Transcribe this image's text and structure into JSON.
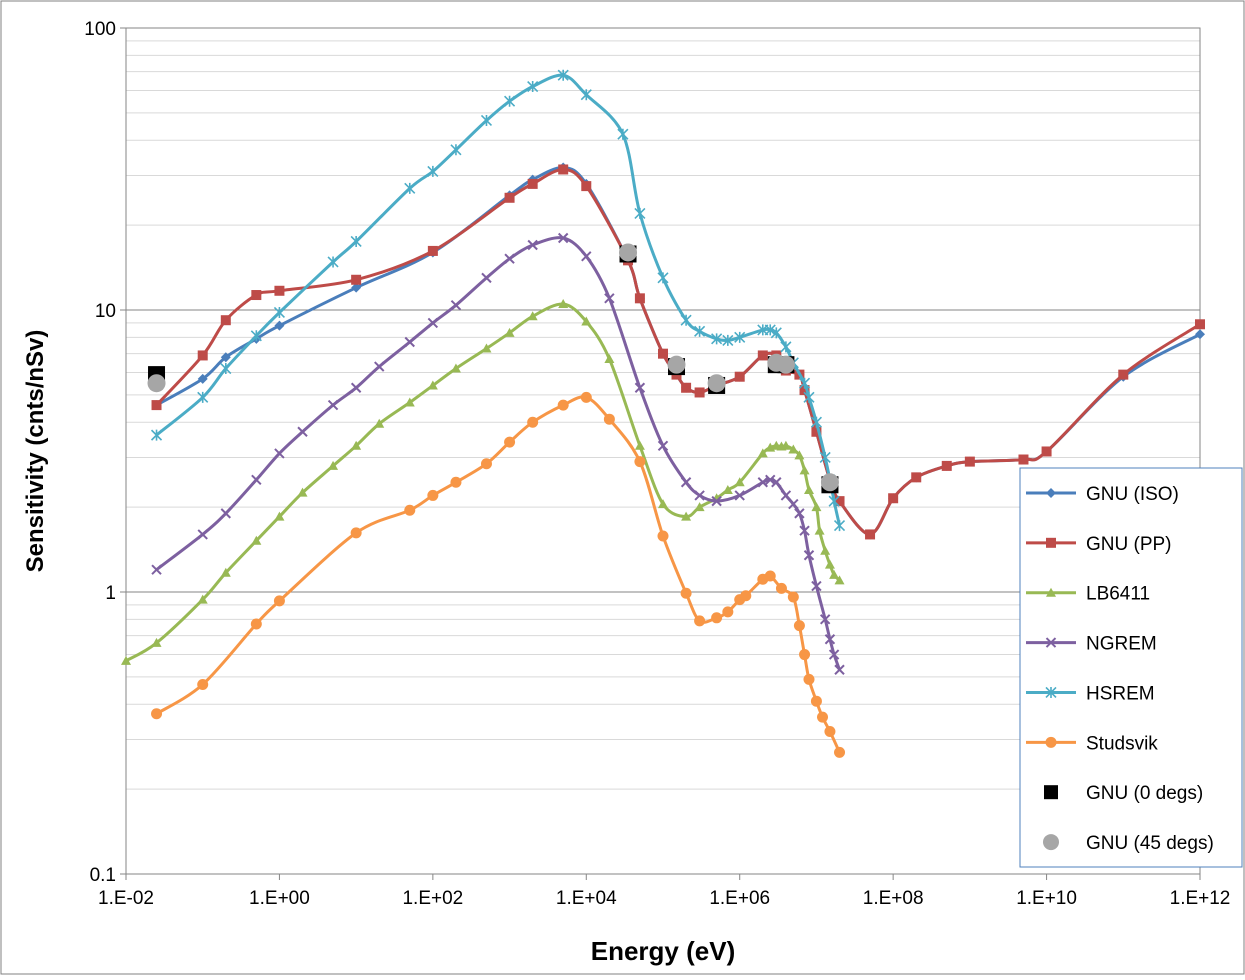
{
  "chart_data": {
    "type": "scatter",
    "xlabel": "Energy (eV)",
    "ylabel": "Sensitivity (cnts/nSv)",
    "x_scale": "log",
    "y_scale": "log",
    "xlim": [
      0.01,
      1000000000000
    ],
    "ylim": [
      0.1,
      100
    ],
    "x_tick_values": [
      0.01,
      1,
      100,
      10000,
      1000000,
      100000000,
      10000000000,
      1000000000000
    ],
    "x_tick_labels": [
      "1.E-02",
      "1.E+00",
      "1.E+02",
      "1.E+04",
      "1.E+06",
      "1.E+08",
      "1.E+10",
      "1.E+12"
    ],
    "y_tick_values": [
      0.1,
      1,
      10,
      100
    ],
    "y_tick_labels": [
      "0.1",
      "1",
      "10",
      "100"
    ],
    "grid": "horizontal major and minor",
    "legend_position": "right",
    "series": [
      {
        "name": "GNU (ISO)",
        "color": "#4A7EBB",
        "marker": "diamond",
        "line": true,
        "points": [
          [
            0.025,
            4.6
          ],
          [
            0.1,
            5.7
          ],
          [
            0.2,
            6.8
          ],
          [
            0.5,
            7.9
          ],
          [
            1,
            8.8
          ],
          [
            10,
            12
          ],
          [
            100,
            16
          ],
          [
            1000,
            25.5
          ],
          [
            2000,
            29
          ],
          [
            5000,
            32
          ],
          [
            10000,
            28
          ],
          [
            35000,
            15
          ],
          [
            50000,
            11
          ],
          [
            100000,
            7
          ],
          [
            150000,
            5.9
          ],
          [
            200000,
            5.3
          ],
          [
            300000,
            5.1
          ],
          [
            500000,
            5.4
          ],
          [
            1000000,
            5.8
          ],
          [
            2000000,
            6.9
          ],
          [
            3000000,
            6.9
          ],
          [
            4000000,
            6.1
          ],
          [
            6000000,
            5.9
          ],
          [
            7000000,
            5.2
          ],
          [
            10000000,
            3.7
          ],
          [
            15000000,
            2.5
          ],
          [
            20000000,
            2.1
          ],
          [
            50000000,
            1.6
          ],
          [
            100000000,
            2.15
          ],
          [
            200000000,
            2.55
          ],
          [
            500000000,
            2.8
          ],
          [
            1000000000,
            2.9
          ],
          [
            5000000000,
            2.95
          ],
          [
            10000000000,
            3.15
          ],
          [
            100000000000,
            5.8
          ],
          [
            1000000000000,
            8.2
          ]
        ]
      },
      {
        "name": "GNU (PP)",
        "color": "#BE4B48",
        "marker": "square",
        "line": true,
        "points": [
          [
            0.025,
            4.6
          ],
          [
            0.1,
            6.9
          ],
          [
            0.2,
            9.2
          ],
          [
            0.5,
            11.3
          ],
          [
            1,
            11.7
          ],
          [
            10,
            12.8
          ],
          [
            100,
            16.2
          ],
          [
            1000,
            25
          ],
          [
            2000,
            28
          ],
          [
            5000,
            31.5
          ],
          [
            10000,
            27.5
          ],
          [
            35000,
            15
          ],
          [
            50000,
            11
          ],
          [
            100000,
            7
          ],
          [
            150000,
            5.9
          ],
          [
            200000,
            5.3
          ],
          [
            300000,
            5.1
          ],
          [
            500000,
            5.4
          ],
          [
            1000000,
            5.8
          ],
          [
            2000000,
            6.9
          ],
          [
            3000000,
            6.9
          ],
          [
            4000000,
            6.1
          ],
          [
            6000000,
            5.9
          ],
          [
            7000000,
            5.2
          ],
          [
            10000000,
            3.7
          ],
          [
            15000000,
            2.5
          ],
          [
            20000000,
            2.1
          ],
          [
            50000000,
            1.6
          ],
          [
            100000000,
            2.15
          ],
          [
            200000000,
            2.55
          ],
          [
            500000000,
            2.8
          ],
          [
            1000000000,
            2.9
          ],
          [
            5000000000,
            2.95
          ],
          [
            10000000000,
            3.15
          ],
          [
            100000000000,
            5.9
          ],
          [
            1000000000000,
            8.9
          ]
        ]
      },
      {
        "name": "LB6411",
        "color": "#98B954",
        "marker": "triangle",
        "line": true,
        "points": [
          [
            0.01,
            0.57
          ],
          [
            0.025,
            0.66
          ],
          [
            0.1,
            0.94
          ],
          [
            0.2,
            1.17
          ],
          [
            0.5,
            1.52
          ],
          [
            1,
            1.85
          ],
          [
            2,
            2.25
          ],
          [
            5,
            2.8
          ],
          [
            10,
            3.3
          ],
          [
            20,
            3.95
          ],
          [
            50,
            4.7
          ],
          [
            100,
            5.4
          ],
          [
            200,
            6.2
          ],
          [
            500,
            7.3
          ],
          [
            1000,
            8.3
          ],
          [
            2000,
            9.5
          ],
          [
            5000,
            10.5
          ],
          [
            10000,
            9.1
          ],
          [
            20000,
            6.7
          ],
          [
            50000,
            3.3
          ],
          [
            100000,
            2.05
          ],
          [
            200000,
            1.85
          ],
          [
            300000,
            2.0
          ],
          [
            500000,
            2.15
          ],
          [
            700000,
            2.3
          ],
          [
            1000000,
            2.45
          ],
          [
            2000000,
            3.1
          ],
          [
            2500000,
            3.25
          ],
          [
            3000000,
            3.3
          ],
          [
            3500000,
            3.28
          ],
          [
            4000000,
            3.3
          ],
          [
            5000000,
            3.2
          ],
          [
            6000000,
            3.05
          ],
          [
            7000000,
            2.7
          ],
          [
            8000000,
            2.3
          ],
          [
            10000000,
            2.0
          ],
          [
            11000000,
            1.65
          ],
          [
            13000000,
            1.4
          ],
          [
            15000000,
            1.25
          ],
          [
            17000000,
            1.15
          ],
          [
            20000000,
            1.1
          ]
        ]
      },
      {
        "name": "NGREM",
        "color": "#7D60A0",
        "marker": "x",
        "line": true,
        "points": [
          [
            0.025,
            1.2
          ],
          [
            0.1,
            1.6
          ],
          [
            0.2,
            1.9
          ],
          [
            0.5,
            2.5
          ],
          [
            1,
            3.1
          ],
          [
            2,
            3.7
          ],
          [
            5,
            4.6
          ],
          [
            10,
            5.3
          ],
          [
            20,
            6.3
          ],
          [
            50,
            7.7
          ],
          [
            100,
            9.0
          ],
          [
            200,
            10.4
          ],
          [
            500,
            13.0
          ],
          [
            1000,
            15.2
          ],
          [
            2000,
            17.0
          ],
          [
            5000,
            18.0
          ],
          [
            10000,
            15.5
          ],
          [
            20000,
            11.0
          ],
          [
            50000,
            5.3
          ],
          [
            100000,
            3.3
          ],
          [
            200000,
            2.45
          ],
          [
            300000,
            2.2
          ],
          [
            500000,
            2.1
          ],
          [
            1000000,
            2.2
          ],
          [
            2000000,
            2.45
          ],
          [
            2500000,
            2.5
          ],
          [
            3000000,
            2.45
          ],
          [
            4000000,
            2.2
          ],
          [
            5000000,
            2.05
          ],
          [
            6000000,
            1.9
          ],
          [
            7000000,
            1.65
          ],
          [
            8000000,
            1.35
          ],
          [
            10000000,
            1.05
          ],
          [
            13000000,
            0.8
          ],
          [
            15000000,
            0.68
          ],
          [
            17000000,
            0.6
          ],
          [
            20000000,
            0.53
          ]
        ]
      },
      {
        "name": "HSREM",
        "color": "#4BACC6",
        "marker": "star",
        "line": true,
        "points": [
          [
            0.025,
            3.6
          ],
          [
            0.1,
            4.9
          ],
          [
            0.2,
            6.2
          ],
          [
            0.5,
            8.1
          ],
          [
            1,
            9.8
          ],
          [
            5,
            14.8
          ],
          [
            10,
            17.5
          ],
          [
            50,
            27
          ],
          [
            100,
            31
          ],
          [
            200,
            37
          ],
          [
            500,
            47
          ],
          [
            1000,
            55
          ],
          [
            2000,
            62
          ],
          [
            5000,
            68
          ],
          [
            10000,
            58
          ],
          [
            30000,
            42
          ],
          [
            50000,
            22
          ],
          [
            100000,
            13
          ],
          [
            200000,
            9.2
          ],
          [
            300000,
            8.4
          ],
          [
            500000,
            7.9
          ],
          [
            700000,
            7.8
          ],
          [
            1000000,
            8.0
          ],
          [
            2000000,
            8.5
          ],
          [
            2500000,
            8.5
          ],
          [
            3000000,
            8.3
          ],
          [
            4000000,
            7.4
          ],
          [
            5000000,
            6.5
          ],
          [
            7000000,
            5.5
          ],
          [
            8000000,
            4.9
          ],
          [
            10000000,
            4.0
          ],
          [
            13000000,
            3.0
          ],
          [
            15000000,
            2.5
          ],
          [
            17000000,
            2.1
          ],
          [
            20000000,
            1.72
          ]
        ]
      },
      {
        "name": "Studsvik",
        "color": "#F79646",
        "marker": "circle",
        "line": true,
        "points": [
          [
            0.025,
            0.37
          ],
          [
            0.1,
            0.47
          ],
          [
            0.5,
            0.77
          ],
          [
            1,
            0.93
          ],
          [
            10,
            1.62
          ],
          [
            50,
            1.95
          ],
          [
            100,
            2.2
          ],
          [
            200,
            2.45
          ],
          [
            500,
            2.85
          ],
          [
            1000,
            3.4
          ],
          [
            2000,
            4.0
          ],
          [
            5000,
            4.6
          ],
          [
            10000,
            4.9
          ],
          [
            20000,
            4.1
          ],
          [
            50000,
            2.9
          ],
          [
            100000,
            1.58
          ],
          [
            200000,
            0.99
          ],
          [
            300000,
            0.79
          ],
          [
            500000,
            0.81
          ],
          [
            700000,
            0.85
          ],
          [
            1000000,
            0.94
          ],
          [
            1200000,
            0.97
          ],
          [
            2000000,
            1.11
          ],
          [
            2500000,
            1.14
          ],
          [
            3500000,
            1.03
          ],
          [
            5000000,
            0.96
          ],
          [
            6000000,
            0.76
          ],
          [
            7000000,
            0.6
          ],
          [
            8000000,
            0.49
          ],
          [
            10000000,
            0.41
          ],
          [
            12000000,
            0.36
          ],
          [
            15000000,
            0.32
          ],
          [
            20000000,
            0.27
          ]
        ]
      },
      {
        "name": "GNU (0 degs)",
        "color": "#000000",
        "marker": "square",
        "line": false,
        "points": [
          [
            0.025,
            5.9
          ],
          [
            35000,
            15.8
          ],
          [
            150000,
            6.3
          ],
          [
            500000,
            5.4
          ],
          [
            3000000,
            6.4
          ],
          [
            4000000,
            6.4
          ],
          [
            15000000,
            2.4
          ]
        ]
      },
      {
        "name": "GNU (45 degs)",
        "color": "#A6A6A6",
        "marker": "circle",
        "line": false,
        "points": [
          [
            0.025,
            5.5
          ],
          [
            35000,
            16.0
          ],
          [
            150000,
            6.4
          ],
          [
            500000,
            5.5
          ],
          [
            3000000,
            6.5
          ],
          [
            4000000,
            6.4
          ],
          [
            15000000,
            2.45
          ]
        ]
      }
    ]
  }
}
